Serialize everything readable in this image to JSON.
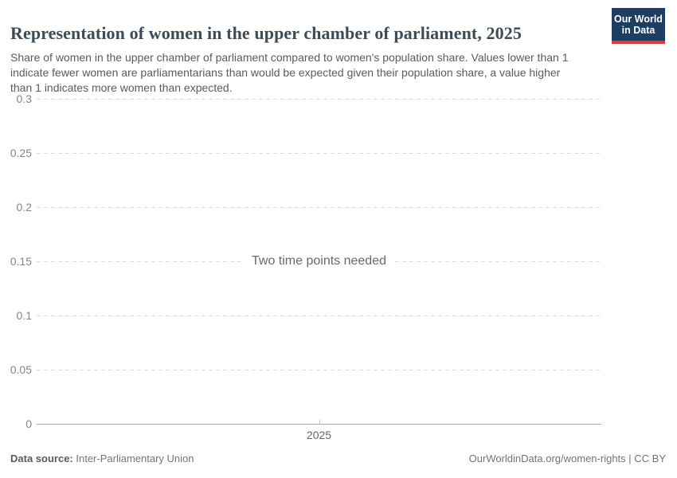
{
  "header": {
    "title": "Representation of women in the upper chamber of parliament, 2025",
    "subtitle": "Share of women in the upper chamber of parliament compared to women's population share. Values lower than 1 indicate fewer women are parliamentarians than would be expected given their population share, a value higher than 1 indicates more women than expected."
  },
  "logo": {
    "line1": "Our World",
    "line2": "in Data",
    "background_color": "#1d3d63",
    "accent_color": "#dc3c31"
  },
  "chart_data": {
    "type": "line",
    "title": "Representation of women in the upper chamber of parliament, 2025",
    "series": [],
    "empty_message": "Two time points needed",
    "x_ticks": [
      "2025"
    ],
    "y_ticks": [
      0,
      0.05,
      0.1,
      0.15,
      0.2,
      0.25,
      0.3
    ],
    "y_tick_labels": [
      "0",
      "0.05",
      "0.1",
      "0.15",
      "0.2",
      "0.25",
      "0.3"
    ],
    "ylim": [
      0,
      0.3
    ],
    "grid": "horizontal-dashed",
    "gridline_color": "#dedede",
    "baseline_color": "#a8a8a8",
    "tick_label_color": "#858585"
  },
  "footer": {
    "source_label": "Data source:",
    "source_value": "Inter-Parliamentary Union",
    "link": "OurWorldinData.org/women-rights | CC BY"
  }
}
